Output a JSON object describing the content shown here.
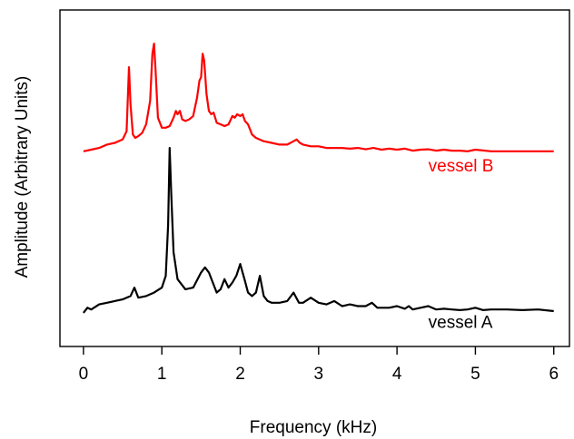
{
  "chart_data": {
    "type": "line",
    "title": "",
    "xlabel": "Frequency (kHz)",
    "ylabel": "Amplitude (Arbitrary Units)",
    "xlim": [
      -0.3,
      6.2
    ],
    "ylim": [
      0,
      10
    ],
    "xticks": [
      0,
      1,
      2,
      3,
      4,
      5,
      6
    ],
    "xtick_labels": [
      "0",
      "1",
      "2",
      "3",
      "4",
      "5",
      "6"
    ],
    "yticks_shown": false,
    "grid": false,
    "legend": "none",
    "series": [
      {
        "name": "vessel B",
        "color": "#ff0000",
        "baseline": 5.8,
        "x": [
          0.0,
          0.1,
          0.2,
          0.3,
          0.4,
          0.5,
          0.55,
          0.58,
          0.6,
          0.63,
          0.66,
          0.7,
          0.75,
          0.8,
          0.85,
          0.88,
          0.9,
          0.92,
          0.95,
          1.0,
          1.05,
          1.1,
          1.15,
          1.18,
          1.2,
          1.23,
          1.26,
          1.3,
          1.35,
          1.4,
          1.45,
          1.48,
          1.5,
          1.52,
          1.54,
          1.57,
          1.6,
          1.63,
          1.66,
          1.7,
          1.75,
          1.8,
          1.85,
          1.9,
          1.93,
          1.96,
          2.0,
          2.03,
          2.06,
          2.1,
          2.15,
          2.2,
          2.3,
          2.4,
          2.5,
          2.6,
          2.68,
          2.72,
          2.76,
          2.8,
          2.9,
          3.0,
          3.1,
          3.2,
          3.3,
          3.4,
          3.5,
          3.6,
          3.7,
          3.8,
          3.9,
          4.0,
          4.1,
          4.2,
          4.3,
          4.4,
          4.5,
          4.6,
          4.7,
          4.8,
          4.9,
          5.0,
          5.2,
          5.4,
          5.6,
          5.8,
          6.0
        ],
        "y": [
          5.8,
          5.85,
          5.9,
          6.0,
          6.05,
          6.15,
          6.4,
          8.3,
          7.2,
          6.3,
          6.2,
          6.25,
          6.35,
          6.6,
          7.3,
          8.7,
          9.0,
          8.2,
          6.8,
          6.5,
          6.5,
          6.55,
          6.8,
          7.0,
          6.9,
          7.0,
          6.75,
          6.7,
          6.75,
          6.85,
          7.4,
          7.9,
          8.0,
          8.7,
          8.5,
          7.5,
          7.0,
          6.9,
          6.95,
          6.65,
          6.6,
          6.55,
          6.6,
          6.85,
          6.8,
          6.9,
          6.85,
          6.9,
          6.7,
          6.6,
          6.3,
          6.2,
          6.1,
          6.05,
          6.0,
          6.0,
          6.1,
          6.15,
          6.05,
          6.0,
          5.95,
          5.95,
          5.9,
          5.9,
          5.9,
          5.88,
          5.9,
          5.86,
          5.9,
          5.85,
          5.88,
          5.85,
          5.88,
          5.82,
          5.85,
          5.86,
          5.82,
          5.85,
          5.82,
          5.82,
          5.8,
          5.85,
          5.8,
          5.8,
          5.8,
          5.8,
          5.8
        ]
      },
      {
        "name": "vessel A",
        "color": "#000000",
        "baseline": 1.1,
        "x": [
          0.0,
          0.05,
          0.1,
          0.2,
          0.3,
          0.4,
          0.5,
          0.6,
          0.65,
          0.7,
          0.8,
          0.9,
          1.0,
          1.05,
          1.08,
          1.1,
          1.12,
          1.15,
          1.2,
          1.3,
          1.4,
          1.5,
          1.55,
          1.6,
          1.65,
          1.7,
          1.75,
          1.8,
          1.85,
          1.9,
          1.95,
          2.0,
          2.03,
          2.06,
          2.1,
          2.15,
          2.2,
          2.25,
          2.3,
          2.35,
          2.4,
          2.5,
          2.6,
          2.68,
          2.75,
          2.8,
          2.9,
          3.0,
          3.1,
          3.2,
          3.3,
          3.4,
          3.5,
          3.6,
          3.68,
          3.75,
          3.8,
          3.9,
          4.0,
          4.1,
          4.15,
          4.2,
          4.3,
          4.4,
          4.5,
          4.6,
          4.7,
          4.8,
          4.9,
          5.0,
          5.1,
          5.2,
          5.4,
          5.6,
          5.8,
          6.0
        ],
        "y": [
          1.0,
          1.15,
          1.1,
          1.25,
          1.3,
          1.35,
          1.4,
          1.5,
          1.75,
          1.45,
          1.5,
          1.6,
          1.75,
          2.1,
          3.6,
          5.9,
          4.5,
          2.8,
          2.0,
          1.7,
          1.75,
          2.2,
          2.35,
          2.2,
          1.9,
          1.6,
          1.7,
          2.0,
          1.75,
          1.9,
          2.1,
          2.45,
          2.2,
          1.95,
          1.6,
          1.5,
          1.6,
          2.1,
          1.5,
          1.35,
          1.3,
          1.3,
          1.35,
          1.6,
          1.3,
          1.3,
          1.45,
          1.3,
          1.25,
          1.35,
          1.2,
          1.25,
          1.2,
          1.2,
          1.3,
          1.15,
          1.15,
          1.15,
          1.2,
          1.12,
          1.2,
          1.1,
          1.15,
          1.2,
          1.1,
          1.12,
          1.1,
          1.08,
          1.1,
          1.15,
          1.08,
          1.1,
          1.1,
          1.08,
          1.1,
          1.05
        ]
      }
    ],
    "annotations": [
      {
        "text": "vessel B",
        "x": 4.4,
        "y": 5.2,
        "color": "#ff0000"
      },
      {
        "text": "vessel A",
        "x": 4.4,
        "y": 0.55,
        "color": "#000000"
      }
    ]
  }
}
